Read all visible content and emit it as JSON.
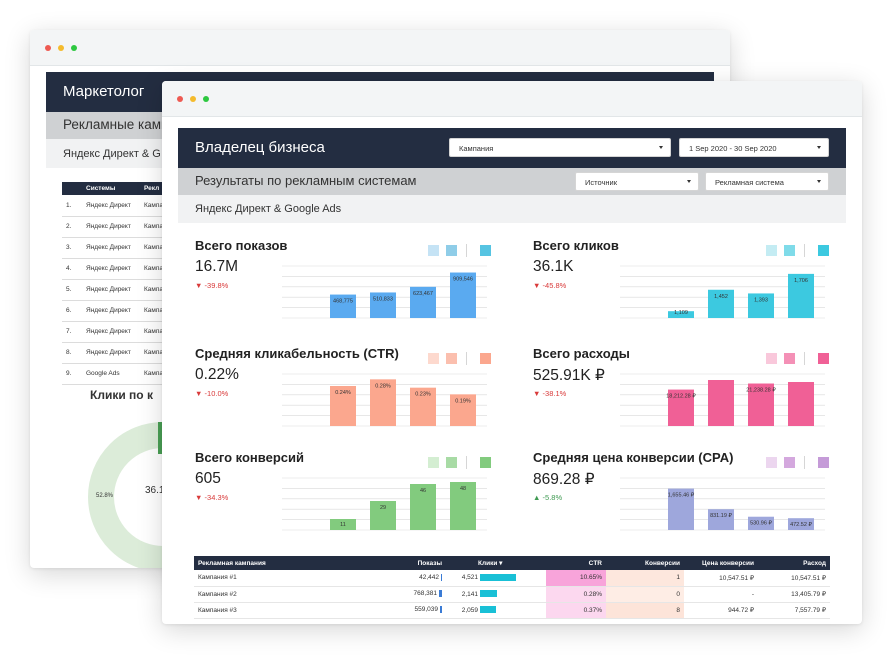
{
  "back_window": {
    "header": "Маркетолог",
    "subheader": "Рекламные кампании",
    "subheader2": "Яндекс Директ & G",
    "table": {
      "columns": [
        "",
        "Системы",
        "Рекл"
      ],
      "rows": [
        [
          "1.",
          "Яндекс Директ",
          "Кампа"
        ],
        [
          "2.",
          "Яндекс Директ",
          "Кампа"
        ],
        [
          "3.",
          "Яндекс Директ",
          "Кампа"
        ],
        [
          "4.",
          "Яндекс Директ",
          "Кампа"
        ],
        [
          "5.",
          "Яндекс Директ",
          "Кампа"
        ],
        [
          "6.",
          "Яндекс Директ",
          "Кампа"
        ],
        [
          "7.",
          "Яндекс Директ",
          "Кампа"
        ],
        [
          "8.",
          "Яндекс Директ",
          "Кампа"
        ],
        [
          "9.",
          "Google Ads",
          "Кампа"
        ]
      ]
    },
    "clicks_title": "Клики по к",
    "donut_label": "52.8%",
    "donut_center": "36.1"
  },
  "front_window": {
    "header": "Владелец бизнеса",
    "dropdown_campaign": "Кампания",
    "dropdown_date": "1 Sep 2020 - 30 Sep 2020",
    "subheader": "Результаты по рекламным системам",
    "dropdown_source": "Источник",
    "dropdown_system": "Рекламная система",
    "subheader2": "Яндекс Директ & Google Ads"
  },
  "kpis": [
    {
      "title": "Всего показов",
      "value": "16.7M",
      "delta": "-39.8%",
      "dir": "neg",
      "color": "#5aaaf0",
      "lightcolor": "#c5e3f5",
      "midcolor": "#8fcde8",
      "darkcolor": "#56c4e2"
    },
    {
      "title": "Всего кликов",
      "value": "36.1K",
      "delta": "-45.8%",
      "dir": "neg",
      "color": "#3cc9e0",
      "lightcolor": "#c4ecf3",
      "midcolor": "#7fdbe9",
      "darkcolor": "#3cc9e0"
    },
    {
      "title": "Средняя кликабельность (CTR)",
      "value": "0.22%",
      "delta": "-10.0%",
      "dir": "neg",
      "color": "#fba78e",
      "lightcolor": "#fdd9ce",
      "midcolor": "#fbbfae",
      "darkcolor": "#fba78e"
    },
    {
      "title": "Всего расходы",
      "value": "525.91K ₽",
      "delta": "-38.1%",
      "dir": "neg",
      "color": "#f06096",
      "lightcolor": "#f9c8db",
      "midcolor": "#f490b6",
      "darkcolor": "#f06096"
    },
    {
      "title": "Всего конверсий",
      "value": "605",
      "delta": "-34.3%",
      "dir": "neg",
      "color": "#82cb7e",
      "lightcolor": "#d4eed2",
      "midcolor": "#a8dba5",
      "darkcolor": "#82cb7e"
    },
    {
      "title": "Средняя цена конверсии (CPA)",
      "value": "869.28 ₽",
      "delta": "-5.8%",
      "dir": "pos",
      "color": "#9ea7dc",
      "lightcolor": "#ecd6ef",
      "midcolor": "#d4a8de",
      "darkcolor": "#c59bd8"
    }
  ],
  "chart_data": [
    {
      "type": "bar",
      "kpi": "Всего показов",
      "values": [
        468775,
        510833,
        623467,
        909546
      ],
      "labels": [
        "468,775",
        "510,833",
        "623,467",
        "909,546"
      ],
      "ylim": [
        0,
        1000000
      ]
    },
    {
      "type": "bar",
      "kpi": "Всего кликов",
      "values": [
        1109,
        1452,
        1393,
        1706
      ],
      "labels": [
        "1,109",
        "1,452",
        "1,393",
        "1,706"
      ],
      "ylim": [
        1000,
        1800
      ]
    },
    {
      "type": "bar",
      "kpi": "Средняя кликабельность (CTR)",
      "values": [
        0.24,
        0.28,
        0.23,
        0.19
      ],
      "labels": [
        "0.24%",
        "0.28%",
        "0.23%",
        "0.19%"
      ],
      "ylim": [
        0,
        0.3
      ]
    },
    {
      "type": "bar",
      "kpi": "Всего расходы",
      "values": [
        18212.28,
        23000,
        21238.28,
        22000
      ],
      "labels": [
        "18,212.28 ₽",
        "",
        "21,238.28 ₽",
        ""
      ],
      "ylim": [
        0,
        25000
      ]
    },
    {
      "type": "bar",
      "kpi": "Всего конверсий",
      "values": [
        11,
        29,
        46,
        48
      ],
      "labels": [
        "11",
        "29",
        "46",
        "48"
      ],
      "ylim": [
        0,
        50
      ]
    },
    {
      "type": "bar",
      "kpi": "Средняя цена конверсии (CPA)",
      "values": [
        1655.46,
        831.19,
        530.96,
        472.52
      ],
      "labels": [
        "1,655.46 ₽",
        "831.19 ₽",
        "530.96 ₽",
        "472.52 ₽"
      ],
      "ylim": [
        0,
        2000
      ]
    }
  ],
  "table": {
    "columns": [
      "Рекламная кампания",
      "Показы",
      "Клики ▾",
      "CTR",
      "Конверсии",
      "Цена конверсии",
      "Расход"
    ],
    "rows": [
      {
        "name": "Кампания #1",
        "shows": "42,442",
        "shows_frac": 0.02,
        "clicks": "4,521",
        "clicks_frac": 1.0,
        "ctr": "10.65%",
        "ctr_frac": 1.0,
        "conv": "1",
        "conv_frac": 0.4,
        "cpa": "10,547.51 ₽",
        "spend": "10,547.51 ₽"
      },
      {
        "name": "Кампания #2",
        "shows": "768,381",
        "shows_frac": 0.3,
        "clicks": "2,141",
        "clicks_frac": 0.47,
        "ctr": "0.28%",
        "ctr_frac": 0.3,
        "conv": "0",
        "conv_frac": 0.2,
        "cpa": "-",
        "spend": "13,405.79 ₽"
      },
      {
        "name": "Кампания #3",
        "shows": "559,039",
        "shows_frac": 0.22,
        "clicks": "2,059",
        "clicks_frac": 0.45,
        "ctr": "0.37%",
        "ctr_frac": 0.32,
        "conv": "8",
        "conv_frac": 0.5,
        "cpa": "944.72 ₽",
        "spend": "7,557.79 ₽"
      }
    ]
  }
}
